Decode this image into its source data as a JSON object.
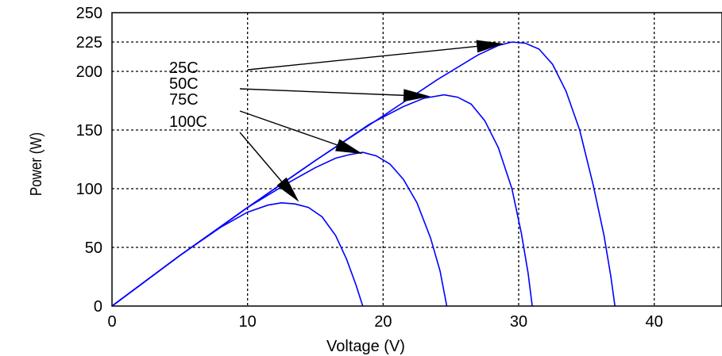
{
  "chart_data": {
    "type": "line",
    "xlabel": "Voltage (V)",
    "ylabel": "Power (W)",
    "xlim": [
      0,
      45
    ],
    "ylim": [
      0,
      250
    ],
    "xticks": [
      0,
      10,
      20,
      30,
      40
    ],
    "yticks": [
      0,
      50,
      100,
      150,
      200,
      225,
      250
    ],
    "grid": true,
    "line_color": "#0000ff",
    "series": [
      {
        "name": "25C",
        "x": [
          0,
          5,
          10,
          15,
          20,
          24,
          27,
          28.5,
          29.5,
          30.5,
          31.5,
          32.5,
          33.5,
          34.5,
          35.5,
          36.3,
          36.8,
          37.1
        ],
        "y": [
          0,
          43,
          84,
          124,
          162,
          193,
          214,
          222,
          225,
          224,
          219,
          206,
          183,
          150,
          103,
          60,
          25,
          0
        ]
      },
      {
        "name": "50C",
        "x": [
          0,
          5,
          10,
          15,
          19,
          21.5,
          23,
          24.5,
          25.5,
          26.5,
          27.5,
          28.5,
          29.5,
          30.2,
          30.7,
          31
        ],
        "y": [
          0,
          43,
          84,
          124,
          155,
          170,
          177,
          180,
          178,
          172,
          158,
          135,
          100,
          62,
          28,
          0
        ]
      },
      {
        "name": "75C",
        "x": [
          0,
          5,
          10,
          13,
          15,
          16.5,
          17.5,
          18.5,
          19.5,
          20.5,
          21.5,
          22.5,
          23.5,
          24.2,
          24.7
        ],
        "y": [
          0,
          43,
          84,
          105,
          118,
          126,
          129,
          131,
          128,
          121,
          108,
          88,
          58,
          30,
          0
        ]
      },
      {
        "name": "100C",
        "x": [
          0,
          5,
          8,
          10,
          11.5,
          12.5,
          13.5,
          14.5,
          15.5,
          16.5,
          17.3,
          18,
          18.5
        ],
        "y": [
          0,
          43,
          67,
          80,
          86,
          88,
          87,
          84,
          76,
          60,
          40,
          18,
          0
        ]
      }
    ],
    "annotations": [
      {
        "text": "25C",
        "arrow_to": [
          28.9,
          225
        ]
      },
      {
        "text": "50C",
        "arrow_to": [
          23.5,
          180
        ]
      },
      {
        "text": "75C",
        "arrow_to": [
          18.5,
          131
        ]
      },
      {
        "text": "100C",
        "arrow_to": [
          13.8,
          90
        ]
      }
    ]
  }
}
